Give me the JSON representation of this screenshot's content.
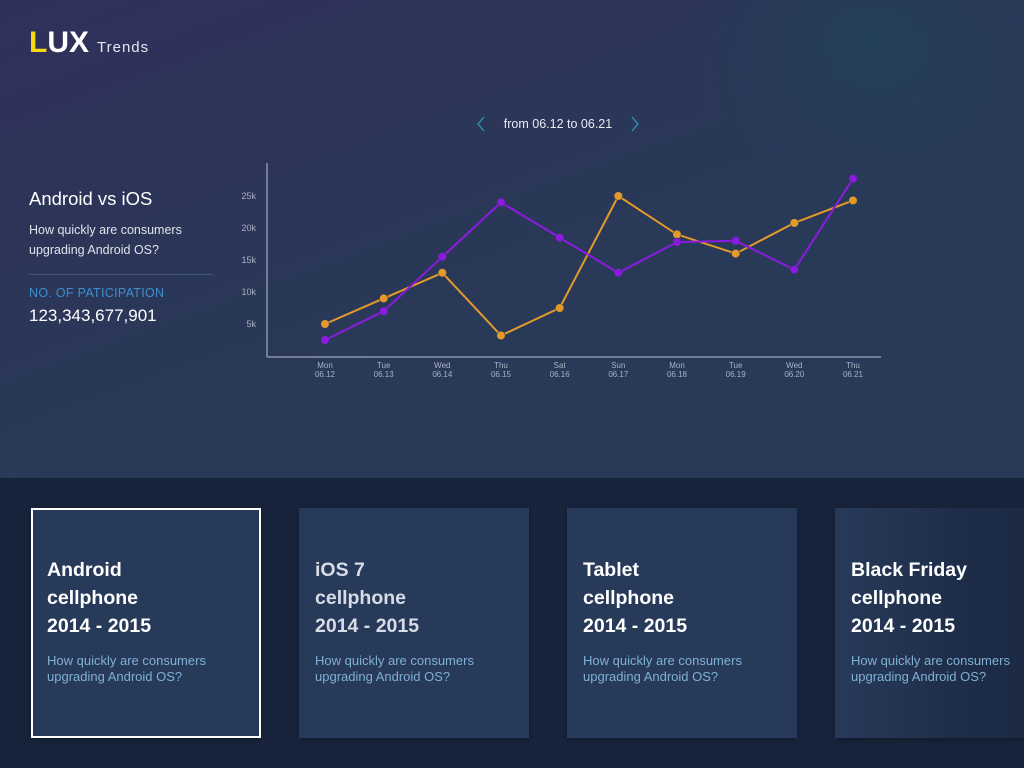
{
  "header": {
    "logo_first_letter": "L",
    "logo_rest": "UX",
    "logo_subtitle": "Trends"
  },
  "date_range": {
    "label": "from 06.12 to 06.21",
    "prev_icon": "chevron-left-icon",
    "next_icon": "chevron-right-icon"
  },
  "info_panel": {
    "title": "Android vs iOS",
    "question": "How quickly are consumers upgrading Android OS?",
    "kpi_label": "NO. OF PATICIPATION",
    "kpi_value": "123,343,677,901"
  },
  "colors": {
    "android_series": "#8c1be0",
    "ios_series": "#e39a2a",
    "accent_blue": "#3e8fd0",
    "logo_yellow": "#f5d80f"
  },
  "chart_data": {
    "type": "line",
    "title": "Android vs iOS",
    "xlabel": "",
    "ylabel": "",
    "ylim": [
      0,
      30000
    ],
    "grid": false,
    "y_ticks": [
      "5k",
      "10k",
      "15k",
      "20k",
      "25k"
    ],
    "categories": [
      {
        "day": "Mon",
        "date": "06.12"
      },
      {
        "day": "Tue",
        "date": "06.13"
      },
      {
        "day": "Wed",
        "date": "06.14"
      },
      {
        "day": "Thu",
        "date": "06.15"
      },
      {
        "day": "Sat",
        "date": "06.16"
      },
      {
        "day": "Sun",
        "date": "06.17"
      },
      {
        "day": "Mon",
        "date": "06.18"
      },
      {
        "day": "Tue",
        "date": "06.19"
      },
      {
        "day": "Wed",
        "date": "06.20"
      },
      {
        "day": "Thu",
        "date": "06.21"
      }
    ],
    "series": [
      {
        "name": "Android",
        "color": "#8c1be0",
        "values": [
          2500,
          7000,
          15500,
          24000,
          18500,
          13000,
          17800,
          18000,
          13500,
          27700
        ]
      },
      {
        "name": "iOS",
        "color": "#e39a2a",
        "values": [
          5000,
          9000,
          13000,
          3200,
          7500,
          25000,
          19000,
          16000,
          20800,
          24300
        ]
      }
    ]
  },
  "cards": [
    {
      "title_line1": "Android",
      "title_line2": "cellphone",
      "title_line3": "2014 - 2015",
      "description_line1": "How quickly are consumers",
      "description_line2": "upgrading Android OS?",
      "selected": true
    },
    {
      "title_line1": "iOS 7",
      "title_line2": "cellphone",
      "title_line3": "2014 - 2015",
      "description_line1": "How quickly are consumers",
      "description_line2": "upgrading Android OS?",
      "selected": false
    },
    {
      "title_line1": "Tablet",
      "title_line2": "cellphone",
      "title_line3": "2014 - 2015",
      "description_line1": "How quickly are consumers",
      "description_line2": "upgrading Android OS?",
      "selected": false
    },
    {
      "title_line1": "Black Friday",
      "title_line2": "cellphone",
      "title_line3": "2014 - 2015",
      "description_line1": "How quickly are consumers",
      "description_line2": "upgrading Android OS?",
      "selected": false
    }
  ]
}
